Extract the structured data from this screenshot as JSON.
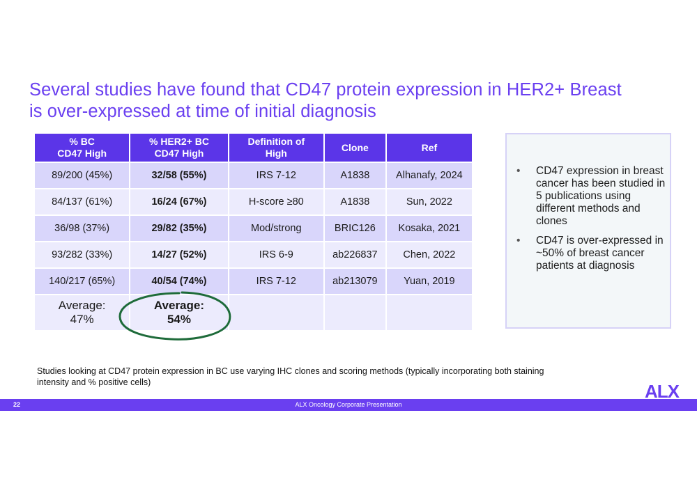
{
  "title": {
    "line1": "Several studies have found that CD47 protein expression in HER2+ Breast",
    "line2": "is over-expressed at time of initial diagnosis"
  },
  "table": {
    "headers": [
      [
        "% BC",
        "CD47 High"
      ],
      [
        "% HER2+ BC",
        "CD47 High"
      ],
      [
        "Definition of",
        "High"
      ],
      [
        "Clone"
      ],
      [
        "Ref"
      ]
    ],
    "rows": [
      [
        "89/200 (45%)",
        "32/58 (55%)",
        "IRS 7-12",
        "A1838",
        "Alhanafy,  2024"
      ],
      [
        "84/137 (61%)",
        "16/24 (67%)",
        "H-score ≥80",
        "A1838",
        "Sun, 2022"
      ],
      [
        "36/98 (37%)",
        "29/82 (35%)",
        "Mod/strong",
        "BRIC126",
        "Kosaka, 2021"
      ],
      [
        "93/282 (33%)",
        "14/27 (52%)",
        "IRS 6-9",
        "ab226837",
        "Chen, 2022"
      ],
      [
        "140/217 (65%)",
        "40/54 (74%)",
        "IRS 7-12",
        "ab213079",
        "Yuan, 2019"
      ]
    ],
    "average_bc": [
      "Average:",
      "47%"
    ],
    "average_her2": [
      "Average:",
      "54%"
    ]
  },
  "bullets": [
    "CD47 expression in breast cancer has been studied in 5 publications using different methods and clones",
    "CD47 is over-expressed in ~50% of breast cancer patients at diagnosis"
  ],
  "bullet_glyph": "•",
  "footnote": "Studies looking at CD47 protein expression in BC use varying IHC clones and scoring methods (typically incorporating both staining intensity and % positive cells)",
  "logo_text": "ALX",
  "footer": {
    "page_number": "22",
    "text": "ALX Oncology Corporate Presentation"
  },
  "colors": {
    "accent": "#6a3ff0",
    "header_fill": "#5b35e8",
    "row_dark": "#d9d6fb",
    "row_light": "#ecebfd",
    "circle": "#1e6b3a"
  }
}
